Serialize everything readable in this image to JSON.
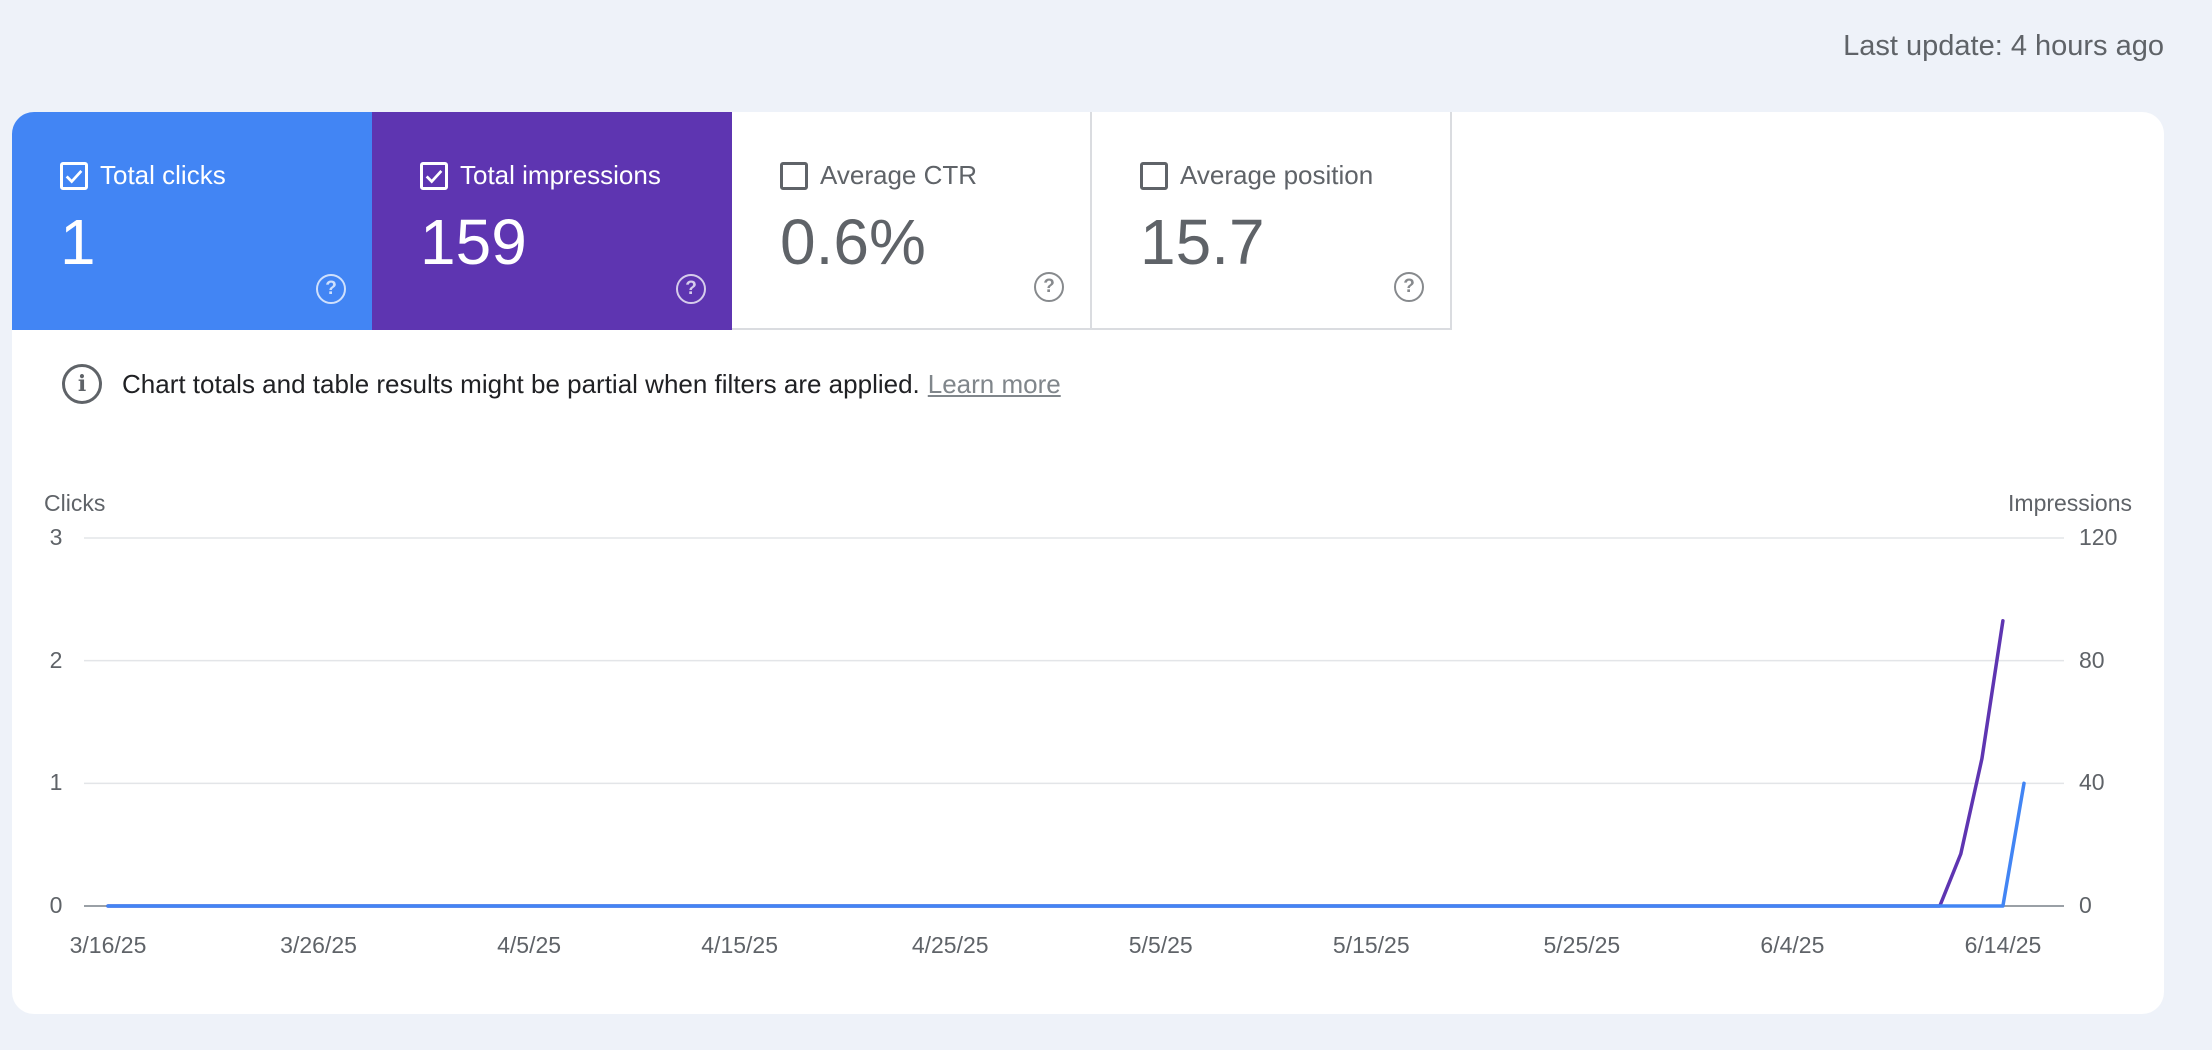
{
  "last_update": "Last update: 4 hours ago",
  "metrics": [
    {
      "label": "Total clicks",
      "value": "1",
      "checked": true,
      "color": "#4285f4",
      "help": "?"
    },
    {
      "label": "Total impressions",
      "value": "159",
      "checked": true,
      "color": "#5e35b1",
      "help": "?"
    },
    {
      "label": "Average CTR",
      "value": "0.6%",
      "checked": false,
      "color": "#ffffff",
      "help": "?"
    },
    {
      "label": "Average position",
      "value": "15.7",
      "checked": false,
      "color": "#ffffff",
      "help": "?"
    }
  ],
  "info": {
    "icon": "info-icon",
    "text": "Chart totals and table results might be partial when filters are applied.",
    "link": "Learn more"
  },
  "chart_data": {
    "type": "line",
    "left_axis_label": "Clicks",
    "right_axis_label": "Impressions",
    "left_ylim": [
      0,
      3
    ],
    "right_ylim": [
      0,
      120
    ],
    "left_ticks": [
      "0",
      "1",
      "2",
      "3"
    ],
    "right_ticks": [
      "0",
      "40",
      "80",
      "120"
    ],
    "x_ticks": [
      "3/16/25",
      "3/26/25",
      "4/5/25",
      "4/15/25",
      "4/25/25",
      "5/5/25",
      "5/15/25",
      "5/25/25",
      "6/4/25",
      "6/14/25"
    ],
    "x_start": "3/16/25",
    "x_end": "6/15/25",
    "grid": true,
    "series": [
      {
        "name": "Total clicks",
        "axis": "left",
        "color": "#4285f4",
        "points": [
          [
            "3/16/25",
            0
          ],
          [
            "6/13/25",
            0
          ],
          [
            "6/14/25",
            0
          ],
          [
            "6/15/25",
            1
          ]
        ]
      },
      {
        "name": "Total impressions",
        "axis": "right",
        "color": "#5e35b1",
        "points": [
          [
            "3/16/25",
            0
          ],
          [
            "6/11/25",
            0
          ],
          [
            "6/12/25",
            17
          ],
          [
            "6/13/25",
            48
          ],
          [
            "6/14/25",
            93
          ]
        ]
      }
    ]
  }
}
